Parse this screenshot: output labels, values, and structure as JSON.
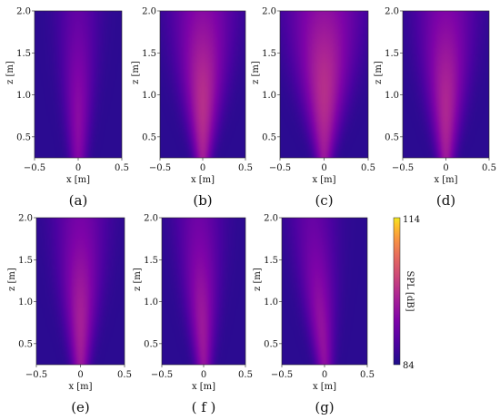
{
  "chart_data": {
    "type": "heatmap",
    "colormap": "plasma",
    "colorbar": {
      "label": "SPL [dB]",
      "min": 84,
      "max": 114,
      "tick_labels": [
        "114",
        "84"
      ]
    },
    "panels": [
      {
        "id": "a",
        "label": "(a)",
        "peak_dB": 93,
        "center_x": 0.0,
        "spread": 0.3,
        "tilt": 0.0,
        "core_z": 0.7,
        "xlabel": "x [m]",
        "ylabel": "z [m]",
        "xlim": [
          -0.5,
          0.5
        ],
        "ylim": [
          0.25,
          2.0
        ],
        "xticks": [
          "−0.5",
          "0",
          "0.5"
        ],
        "yticks": [
          "0.5",
          "1.0",
          "1.5",
          "2.0"
        ]
      },
      {
        "id": "b",
        "label": "(b)",
        "peak_dB": 98,
        "center_x": 0.0,
        "spread": 0.55,
        "tilt": 0.0,
        "core_z": 0.9,
        "xlabel": "x [m]",
        "ylabel": "z [m]",
        "xlim": [
          -0.5,
          0.5
        ],
        "ylim": [
          0.25,
          2.0
        ],
        "xticks": [
          "−0.5",
          "0",
          "0.5"
        ],
        "yticks": [
          "0.5",
          "1.0",
          "1.5",
          "2.0"
        ]
      },
      {
        "id": "c",
        "label": "(c)",
        "peak_dB": 98,
        "center_x": 0.0,
        "spread": 0.65,
        "tilt": 0.0,
        "core_z": 1.05,
        "xlabel": "x [m]",
        "ylabel": "z [m]",
        "xlim": [
          -0.5,
          0.5
        ],
        "ylim": [
          0.25,
          2.0
        ],
        "xticks": [
          "−0.5",
          "0",
          "0.5"
        ],
        "yticks": [
          "0.5",
          "1.0",
          "1.5",
          "2.0"
        ]
      },
      {
        "id": "d",
        "label": "(d)",
        "peak_dB": 97,
        "center_x": 0.0,
        "spread": 0.5,
        "tilt": 0.0,
        "core_z": 0.85,
        "xlabel": "x [m]",
        "ylabel": "z [m]",
        "xlim": [
          -0.5,
          0.5
        ],
        "ylim": [
          0.25,
          2.0
        ],
        "xticks": [
          "−0.5",
          "0",
          "0.5"
        ],
        "yticks": [
          "0.5",
          "1.0",
          "1.5",
          "2.0"
        ]
      },
      {
        "id": "e",
        "label": "(e)",
        "peak_dB": 96,
        "center_x": 0.0,
        "spread": 0.42,
        "tilt": 0.0,
        "core_z": 0.75,
        "xlabel": "x [m]",
        "ylabel": "z [m]",
        "xlim": [
          -0.5,
          0.5
        ],
        "ylim": [
          0.25,
          2.0
        ],
        "xticks": [
          "−0.5",
          "0",
          "0.5"
        ],
        "yticks": [
          "0.5",
          "1.0",
          "1.5",
          "2.0"
        ]
      },
      {
        "id": "f",
        "label": "( f )",
        "peak_dB": 95,
        "center_x": 0.0,
        "spread": 0.38,
        "tilt": -0.06,
        "core_z": 0.7,
        "xlabel": "x [m]",
        "ylabel": "z [m]",
        "xlim": [
          -0.5,
          0.5
        ],
        "ylim": [
          0.25,
          2.0
        ],
        "xticks": [
          "−0.5",
          "0",
          "0.5"
        ],
        "yticks": [
          "0.5",
          "1.0",
          "1.5",
          "2.0"
        ]
      },
      {
        "id": "g",
        "label": "(g)",
        "peak_dB": 94,
        "center_x": 0.0,
        "spread": 0.36,
        "tilt": -0.14,
        "core_z": 0.65,
        "xlabel": "x [m]",
        "ylabel": "z [m]",
        "xlim": [
          -0.5,
          0.5
        ],
        "ylim": [
          0.25,
          2.0
        ],
        "xticks": [
          "−0.5",
          "0",
          "0.5"
        ],
        "yticks": [
          "0.5",
          "1.0",
          "1.5",
          "2.0"
        ]
      }
    ]
  }
}
